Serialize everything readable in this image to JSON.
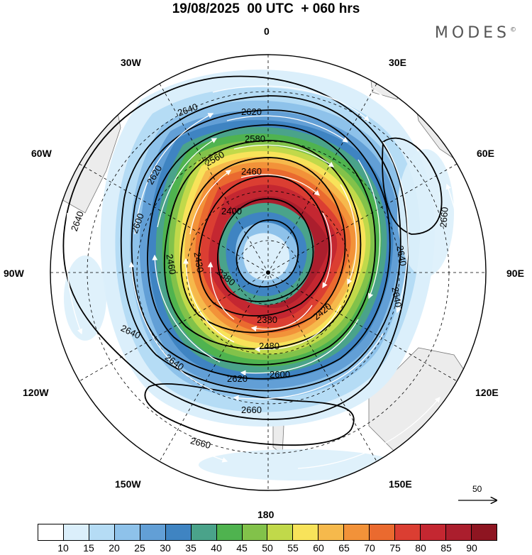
{
  "title": "19/08/2025  00 UTC  + 060 hrs",
  "brand": "MODES",
  "brand_mark": "©",
  "longitude_labels": {
    "top": "0",
    "e30": "30E",
    "e60": "60E",
    "e90": "90E",
    "e120": "120E",
    "e150": "150E",
    "bottom": "180",
    "w150": "150W",
    "w120": "120W",
    "w90": "90W",
    "w60": "60W",
    "w30": "30W"
  },
  "contour_labels": [
    "2640",
    "2620",
    "2580",
    "2560",
    "2620",
    "2460",
    "2600",
    "2400",
    "2430",
    "2640",
    "2380",
    "2460",
    "2380",
    "2420",
    "2480",
    "2640",
    "2620",
    "2600",
    "2660",
    "2660",
    "2660",
    "2640",
    "2640",
    "2640"
  ],
  "reference_vector": "50",
  "colorbar": {
    "colors": [
      "#ffffff",
      "#dbeffb",
      "#b5dcf5",
      "#8ec2ea",
      "#629fd6",
      "#3f84c2",
      "#4aa38a",
      "#4fb34f",
      "#82c24a",
      "#c1d94a",
      "#f8e35a",
      "#f6b94c",
      "#f29239",
      "#ea6a2f",
      "#db3e32",
      "#c42731",
      "#ab1e2d",
      "#8e1521"
    ],
    "labels": [
      "10",
      "15",
      "20",
      "25",
      "30",
      "35",
      "40",
      "45",
      "50",
      "55",
      "60",
      "65",
      "70",
      "75",
      "80",
      "85",
      "90"
    ]
  }
}
